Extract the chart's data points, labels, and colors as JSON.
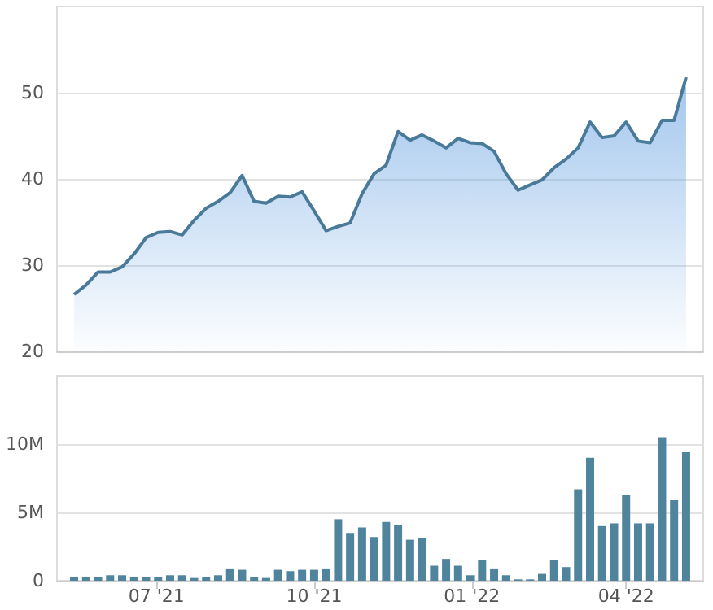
{
  "chart_data": [
    {
      "type": "area",
      "x": [
        "2021-05-14",
        "2021-05-21",
        "2021-05-28",
        "2021-06-04",
        "2021-06-11",
        "2021-06-18",
        "2021-06-25",
        "2021-07-02",
        "2021-07-09",
        "2021-07-16",
        "2021-07-23",
        "2021-07-30",
        "2021-08-06",
        "2021-08-13",
        "2021-08-20",
        "2021-08-27",
        "2021-09-03",
        "2021-09-10",
        "2021-09-17",
        "2021-09-24",
        "2021-10-01",
        "2021-10-08",
        "2021-10-15",
        "2021-10-22",
        "2021-10-29",
        "2021-11-05",
        "2021-11-12",
        "2021-11-19",
        "2021-11-26",
        "2021-12-03",
        "2021-12-10",
        "2021-12-17",
        "2021-12-24",
        "2021-12-31",
        "2022-01-07",
        "2022-01-14",
        "2022-01-21",
        "2022-01-28",
        "2022-02-04",
        "2022-02-11",
        "2022-02-18",
        "2022-02-25",
        "2022-03-04",
        "2022-03-11",
        "2022-03-18",
        "2022-03-25",
        "2022-04-01",
        "2022-04-08",
        "2022-04-15",
        "2022-04-22",
        "2022-04-29",
        "2022-05-06"
      ],
      "series": [
        {
          "color": "#4a7a99",
          "values": [
            26.6,
            27.7,
            29.2,
            29.2,
            29.8,
            31.3,
            33.2,
            33.8,
            33.9,
            33.5,
            35.2,
            36.6,
            37.4,
            38.4,
            40.4,
            37.4,
            37.2,
            38.0,
            37.9,
            38.5,
            36.3,
            34.0,
            34.5,
            34.9,
            38.3,
            40.6,
            41.6,
            45.5,
            44.5,
            45.1,
            44.4,
            43.6,
            44.7,
            44.2,
            44.1,
            43.2,
            40.6,
            38.7,
            39.3,
            39.9,
            41.3,
            42.3,
            43.6,
            46.6,
            44.8,
            45.0,
            46.6,
            44.4,
            44.2,
            46.8,
            46.8,
            51.8
          ]
        }
      ],
      "xlim": [
        "2021-05-04",
        "2022-05-16"
      ],
      "ylim": [
        20,
        60
      ],
      "yticks": [
        20,
        30,
        40,
        50
      ],
      "grid": "y",
      "tick_labels": "y",
      "marker": "none"
    },
    {
      "type": "bar",
      "x": [
        "2021-05-14",
        "2021-05-21",
        "2021-05-28",
        "2021-06-04",
        "2021-06-11",
        "2021-06-18",
        "2021-06-25",
        "2021-07-02",
        "2021-07-09",
        "2021-07-16",
        "2021-07-23",
        "2021-07-30",
        "2021-08-06",
        "2021-08-13",
        "2021-08-20",
        "2021-08-27",
        "2021-09-03",
        "2021-09-10",
        "2021-09-17",
        "2021-09-24",
        "2021-10-01",
        "2021-10-08",
        "2021-10-15",
        "2021-10-22",
        "2021-10-29",
        "2021-11-05",
        "2021-11-12",
        "2021-11-19",
        "2021-11-26",
        "2021-12-03",
        "2021-12-10",
        "2021-12-17",
        "2021-12-24",
        "2021-12-31",
        "2022-01-07",
        "2022-01-14",
        "2022-01-21",
        "2022-01-28",
        "2022-02-04",
        "2022-02-11",
        "2022-02-18",
        "2022-02-25",
        "2022-03-04",
        "2022-03-11",
        "2022-03-18",
        "2022-03-25",
        "2022-04-01",
        "2022-04-08",
        "2022-04-15",
        "2022-04-22",
        "2022-04-29",
        "2022-05-06"
      ],
      "series": [
        {
          "color": "#4f849c",
          "values": [
            300000,
            300000,
            300000,
            400000,
            400000,
            300000,
            300000,
            300000,
            400000,
            400000,
            200000,
            300000,
            400000,
            900000,
            800000,
            300000,
            200000,
            800000,
            700000,
            800000,
            800000,
            900000,
            4500000,
            3500000,
            3900000,
            3200000,
            4300000,
            4100000,
            3000000,
            3100000,
            1100000,
            1600000,
            1100000,
            400000,
            1500000,
            900000,
            400000,
            100000,
            100000,
            500000,
            1500000,
            1000000,
            6700000,
            9000000,
            4000000,
            4200000,
            6300000,
            4200000,
            4200000,
            10500000,
            5900000,
            9400000
          ]
        }
      ],
      "xlim": [
        "2021-05-04",
        "2022-05-16"
      ],
      "xticks": [
        {
          "value": "2021-07-01",
          "label": "07 '21"
        },
        {
          "value": "2021-10-01",
          "label": "10 '21"
        },
        {
          "value": "2022-01-01",
          "label": "01 '22"
        },
        {
          "value": "2022-04-01",
          "label": "04 '22"
        }
      ],
      "ylim": [
        0,
        15000000
      ],
      "yticks": [
        {
          "value": 0,
          "label": "0"
        },
        {
          "value": 5000000,
          "label": "5M"
        },
        {
          "value": 10000000,
          "label": "10M"
        }
      ],
      "grid": "y"
    }
  ]
}
